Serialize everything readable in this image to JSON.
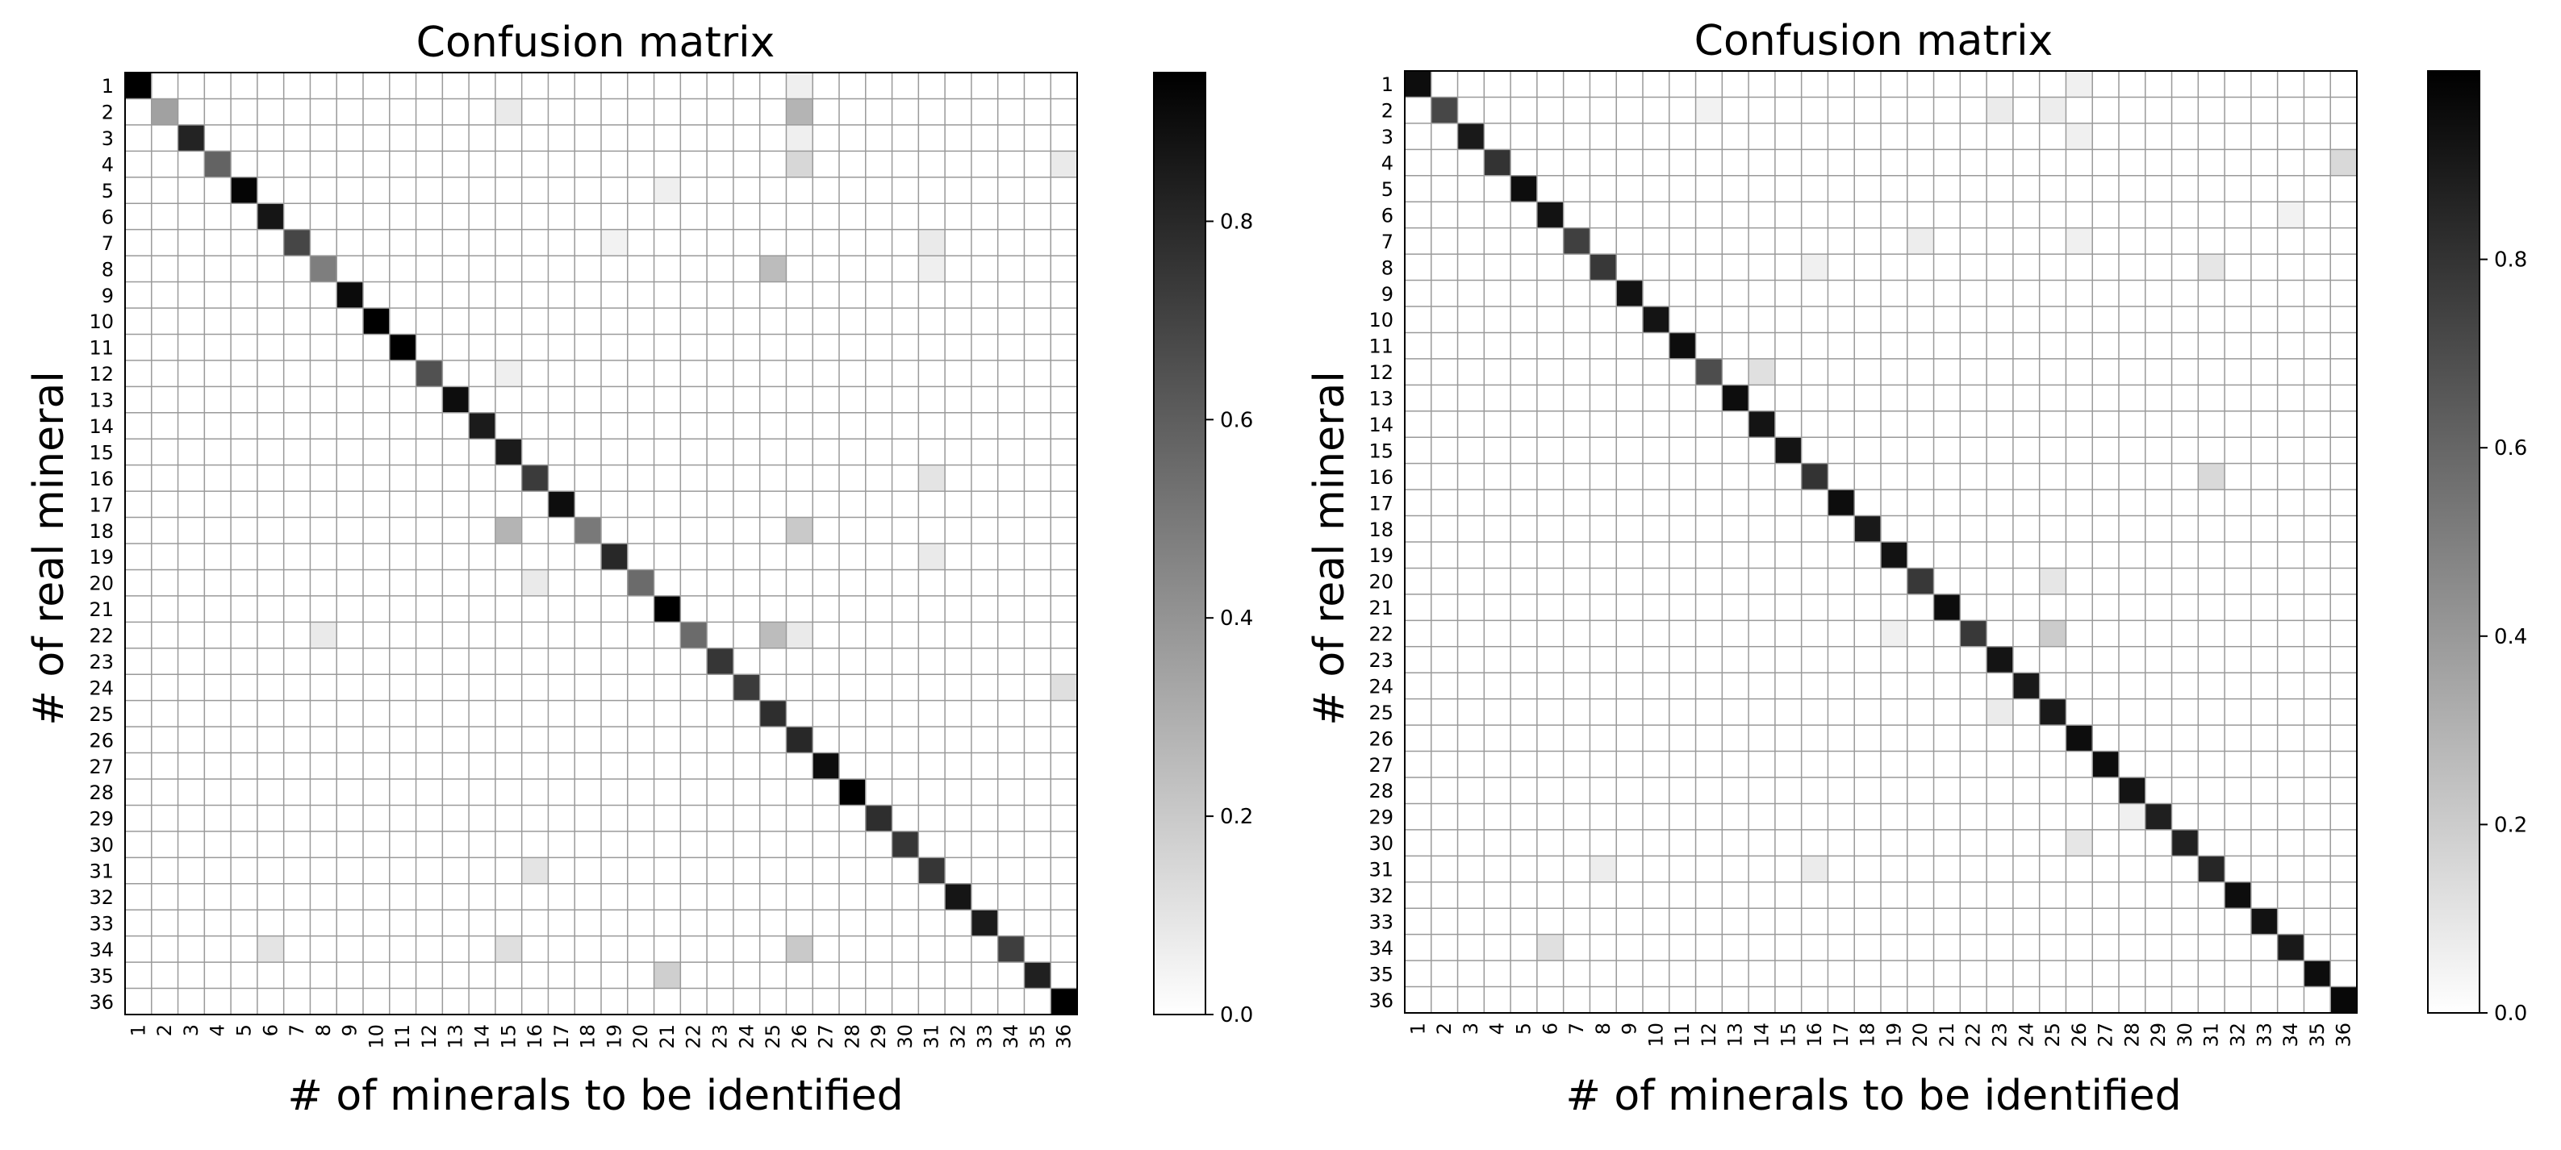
{
  "chart_data": [
    {
      "type": "heatmap",
      "title": "Confusion matrix",
      "xlabel": "# of minerals to be identified",
      "ylabel": "# of real mineral",
      "categories": [
        "1",
        "2",
        "3",
        "4",
        "5",
        "6",
        "7",
        "8",
        "9",
        "10",
        "11",
        "12",
        "13",
        "14",
        "15",
        "16",
        "17",
        "18",
        "19",
        "20",
        "21",
        "22",
        "23",
        "24",
        "25",
        "26",
        "27",
        "28",
        "29",
        "30",
        "31",
        "32",
        "33",
        "34",
        "35",
        "36"
      ],
      "diagonal": [
        0.95,
        0.35,
        0.82,
        0.58,
        0.93,
        0.87,
        0.69,
        0.48,
        0.91,
        0.95,
        0.97,
        0.65,
        0.9,
        0.85,
        0.85,
        0.73,
        0.9,
        0.5,
        0.8,
        0.55,
        0.95,
        0.55,
        0.75,
        0.73,
        0.78,
        0.8,
        0.9,
        0.95,
        0.78,
        0.75,
        0.75,
        0.87,
        0.85,
        0.72,
        0.83,
        0.95
      ],
      "off_diagonal": [
        {
          "row": 1,
          "col": 26,
          "value": 0.06
        },
        {
          "row": 2,
          "col": 15,
          "value": 0.08
        },
        {
          "row": 2,
          "col": 26,
          "value": 0.28
        },
        {
          "row": 3,
          "col": 26,
          "value": 0.06
        },
        {
          "row": 4,
          "col": 26,
          "value": 0.15
        },
        {
          "row": 4,
          "col": 36,
          "value": 0.08
        },
        {
          "row": 5,
          "col": 21,
          "value": 0.06
        },
        {
          "row": 7,
          "col": 19,
          "value": 0.05
        },
        {
          "row": 7,
          "col": 31,
          "value": 0.08
        },
        {
          "row": 8,
          "col": 25,
          "value": 0.25
        },
        {
          "row": 8,
          "col": 31,
          "value": 0.06
        },
        {
          "row": 12,
          "col": 15,
          "value": 0.06
        },
        {
          "row": 16,
          "col": 31,
          "value": 0.1
        },
        {
          "row": 18,
          "col": 15,
          "value": 0.28
        },
        {
          "row": 18,
          "col": 26,
          "value": 0.2
        },
        {
          "row": 19,
          "col": 31,
          "value": 0.08
        },
        {
          "row": 20,
          "col": 16,
          "value": 0.08
        },
        {
          "row": 22,
          "col": 8,
          "value": 0.08
        },
        {
          "row": 22,
          "col": 25,
          "value": 0.25
        },
        {
          "row": 22,
          "col": 26,
          "value": 0.08
        },
        {
          "row": 24,
          "col": 36,
          "value": 0.12
        },
        {
          "row": 31,
          "col": 16,
          "value": 0.1
        },
        {
          "row": 34,
          "col": 6,
          "value": 0.1
        },
        {
          "row": 34,
          "col": 15,
          "value": 0.12
        },
        {
          "row": 34,
          "col": 26,
          "value": 0.2
        },
        {
          "row": 35,
          "col": 21,
          "value": 0.18
        }
      ],
      "colorbar": {
        "range": [
          0.0,
          0.95
        ],
        "ticks": [
          0.0,
          0.2,
          0.4,
          0.6,
          0.8
        ],
        "tick_labels": [
          "0.0",
          "0.2",
          "0.4",
          "0.6",
          "0.8"
        ]
      }
    },
    {
      "type": "heatmap",
      "title": "Confusion matrix",
      "xlabel": "# of minerals to be identified",
      "ylabel": "# of real mineral",
      "categories": [
        "1",
        "2",
        "3",
        "4",
        "5",
        "6",
        "7",
        "8",
        "9",
        "10",
        "11",
        "12",
        "13",
        "14",
        "15",
        "16",
        "17",
        "18",
        "19",
        "20",
        "21",
        "22",
        "23",
        "24",
        "25",
        "26",
        "27",
        "28",
        "29",
        "30",
        "31",
        "32",
        "33",
        "34",
        "35",
        "36"
      ],
      "diagonal": [
        0.95,
        0.72,
        0.9,
        0.8,
        0.95,
        0.93,
        0.75,
        0.78,
        0.93,
        0.92,
        0.95,
        0.7,
        0.95,
        0.92,
        0.92,
        0.8,
        0.95,
        0.9,
        0.93,
        0.78,
        0.95,
        0.78,
        0.92,
        0.9,
        0.9,
        0.95,
        0.95,
        0.92,
        0.88,
        0.87,
        0.85,
        0.95,
        0.93,
        0.9,
        0.95,
        0.97
      ],
      "off_diagonal": [
        {
          "row": 1,
          "col": 26,
          "value": 0.06
        },
        {
          "row": 2,
          "col": 12,
          "value": 0.05
        },
        {
          "row": 2,
          "col": 23,
          "value": 0.08
        },
        {
          "row": 2,
          "col": 25,
          "value": 0.07
        },
        {
          "row": 3,
          "col": 26,
          "value": 0.06
        },
        {
          "row": 4,
          "col": 36,
          "value": 0.15
        },
        {
          "row": 6,
          "col": 34,
          "value": 0.05
        },
        {
          "row": 7,
          "col": 20,
          "value": 0.07
        },
        {
          "row": 7,
          "col": 26,
          "value": 0.06
        },
        {
          "row": 8,
          "col": 16,
          "value": 0.06
        },
        {
          "row": 8,
          "col": 31,
          "value": 0.1
        },
        {
          "row": 12,
          "col": 14,
          "value": 0.12
        },
        {
          "row": 16,
          "col": 31,
          "value": 0.15
        },
        {
          "row": 20,
          "col": 25,
          "value": 0.1
        },
        {
          "row": 22,
          "col": 25,
          "value": 0.2
        },
        {
          "row": 22,
          "col": 19,
          "value": 0.06
        },
        {
          "row": 25,
          "col": 23,
          "value": 0.08
        },
        {
          "row": 29,
          "col": 28,
          "value": 0.06
        },
        {
          "row": 30,
          "col": 26,
          "value": 0.1
        },
        {
          "row": 31,
          "col": 8,
          "value": 0.07
        },
        {
          "row": 31,
          "col": 16,
          "value": 0.08
        },
        {
          "row": 34,
          "col": 6,
          "value": 0.12
        }
      ],
      "colorbar": {
        "range": [
          0.0,
          1.0
        ],
        "ticks": [
          0.0,
          0.2,
          0.4,
          0.6,
          0.8
        ],
        "tick_labels": [
          "0.0",
          "0.2",
          "0.4",
          "0.6",
          "0.8"
        ]
      }
    }
  ]
}
